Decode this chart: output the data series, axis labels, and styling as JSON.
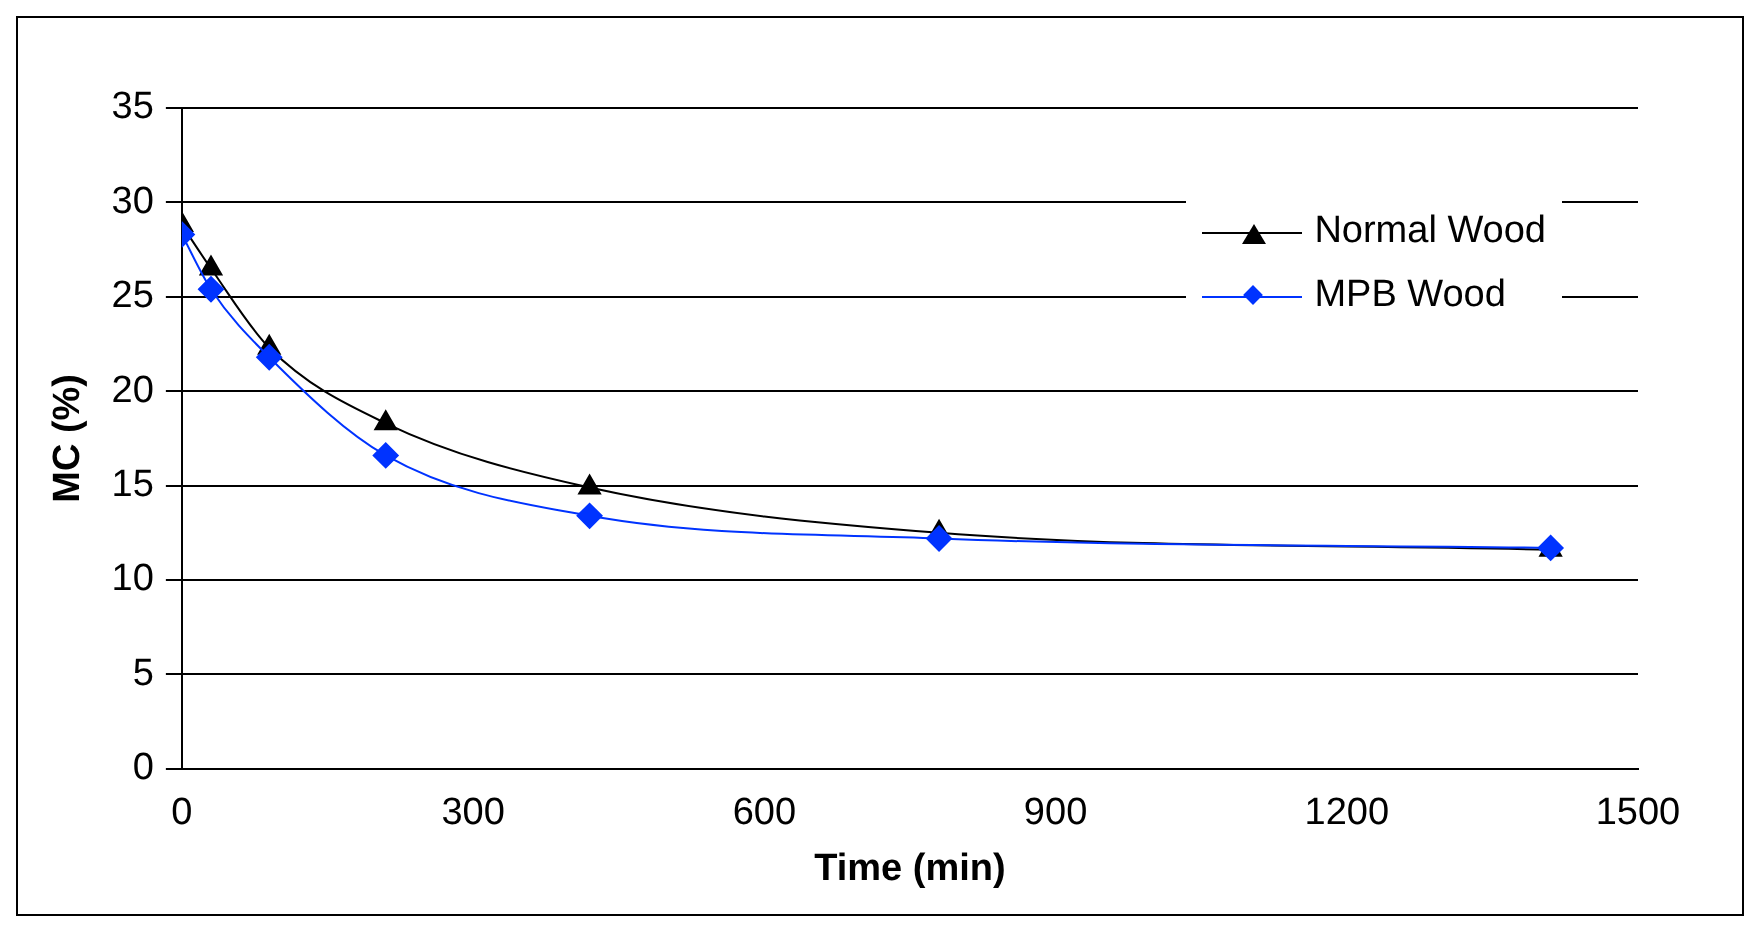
{
  "chart_data": {
    "type": "line",
    "xlabel": "Time (min)",
    "ylabel": "MC (%)",
    "xlim": [
      0,
      1500
    ],
    "xticks": [
      0,
      300,
      600,
      900,
      1200,
      1500
    ],
    "ylim": [
      0,
      35
    ],
    "yticks": [
      0,
      5,
      10,
      15,
      20,
      25,
      30,
      35
    ],
    "grid": "y",
    "legend": "top right",
    "line_style": "solid",
    "series": [
      {
        "name": "Normal Wood",
        "color": "#000000",
        "marker": "triangle",
        "x": [
          0,
          30,
          90,
          210,
          420,
          780,
          1410
        ],
        "values": [
          28.8,
          26.5,
          22.3,
          18.3,
          14.9,
          12.5,
          11.6
        ]
      },
      {
        "name": "MPB Wood",
        "color": "#0033ff",
        "marker": "diamond",
        "x": [
          0,
          30,
          90,
          210,
          420,
          780,
          1410
        ],
        "values": [
          28.3,
          25.4,
          21.8,
          16.6,
          13.4,
          12.2,
          11.7
        ]
      }
    ]
  }
}
